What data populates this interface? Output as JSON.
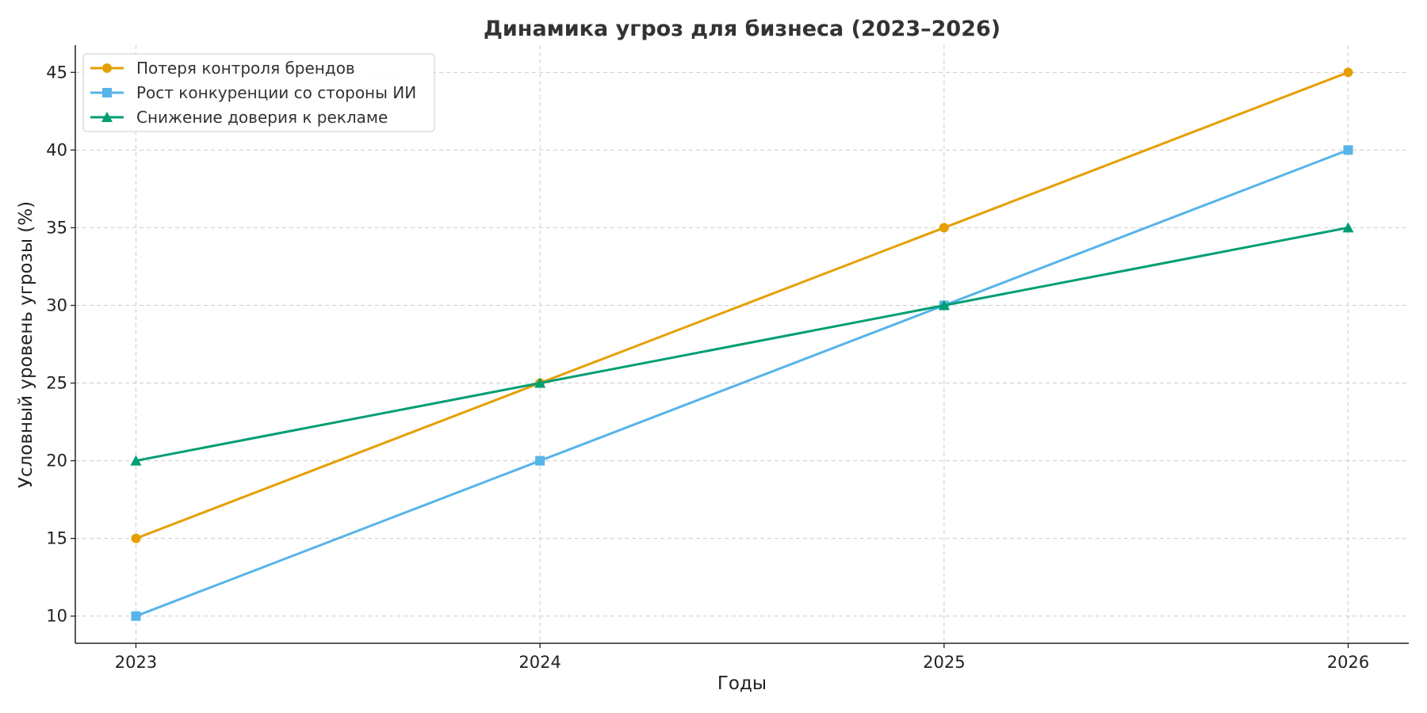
{
  "chart_data": {
    "type": "line",
    "title": "Динамика угроз для бизнеса (2023–2026)",
    "xlabel": "Годы",
    "ylabel": "Условный уровень угрозы (%)",
    "x": [
      2023,
      2024,
      2025,
      2026
    ],
    "x_tick_labels": [
      "2023",
      "2024",
      "2025",
      "2026"
    ],
    "y_ticks": [
      10,
      15,
      20,
      25,
      30,
      35,
      40,
      45
    ],
    "y_tick_labels": [
      "10",
      "15",
      "20",
      "25",
      "30",
      "35",
      "40",
      "45"
    ],
    "ylim": [
      8.25,
      46.75
    ],
    "xlim": [
      2022.85,
      2026.15
    ],
    "grid": true,
    "legend_position": "top-left",
    "series": [
      {
        "name": "Потеря контроля брендов",
        "values": [
          15,
          25,
          35,
          45
        ],
        "color": "#E69F00",
        "marker": "circle"
      },
      {
        "name": "Рост конкуренции со стороны ИИ",
        "values": [
          10,
          20,
          30,
          40
        ],
        "color": "#56B4E9",
        "marker": "square"
      },
      {
        "name": "Снижение доверия к рекламе",
        "values": [
          20,
          25,
          30,
          35
        ],
        "color": "#009E73",
        "marker": "triangle"
      }
    ]
  }
}
